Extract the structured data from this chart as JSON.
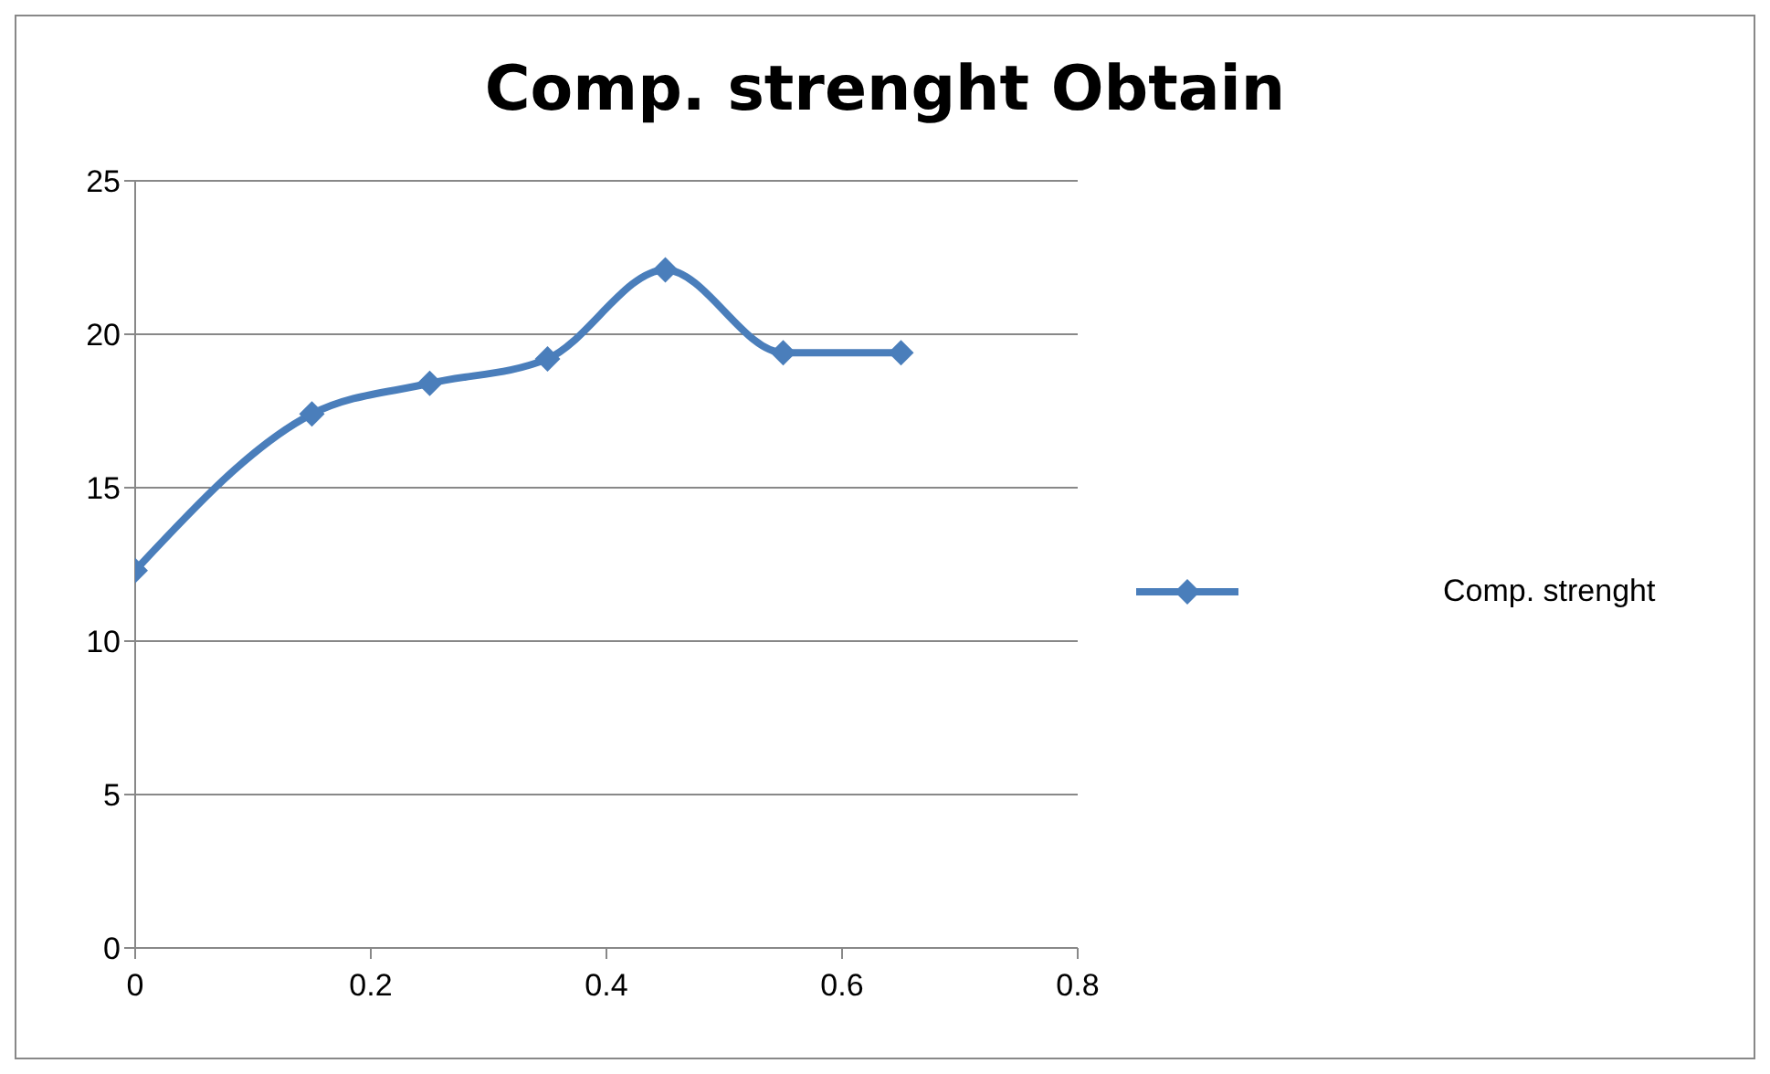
{
  "chart_data": {
    "type": "line",
    "title": "Comp. strenght Obtain",
    "x": [
      0,
      0.15,
      0.25,
      0.35,
      0.45,
      0.55,
      0.65
    ],
    "series": [
      {
        "name": "Comp. strenght",
        "color": "#4a7ebb",
        "values": [
          12.3,
          17.4,
          18.4,
          19.2,
          22.1,
          19.4,
          19.4
        ]
      }
    ],
    "xlim": [
      0,
      0.8
    ],
    "xticks": [
      0,
      0.2,
      0.4,
      0.6,
      0.8
    ],
    "ylim": [
      0,
      25
    ],
    "yticks": [
      0,
      5,
      10,
      15,
      20,
      25
    ],
    "grid": "y",
    "legend": "right",
    "marker": "diamond",
    "line_style": "solid"
  }
}
